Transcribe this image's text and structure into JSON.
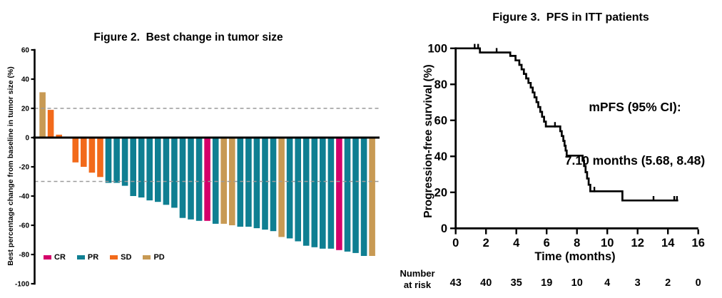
{
  "chart_data": [
    {
      "type": "bar",
      "title": "Figure 2.  Best change in tumor size",
      "ylabel": "Best percentage change from baseline in tumor size (%)",
      "ylim": [
        -100,
        60
      ],
      "yticks": [
        60,
        40,
        20,
        0,
        -20,
        -40,
        -60,
        -80,
        -100
      ],
      "ref_lines": [
        20,
        -30
      ],
      "grid": "off",
      "legend_position": "bottom-left",
      "colors": {
        "CR": "#D4006A",
        "PR": "#0F7F92",
        "SD": "#F26A1B",
        "PD": "#C89A54"
      },
      "legend": [
        {
          "label": "CR",
          "color": "#D4006A"
        },
        {
          "label": "PR",
          "color": "#0F7F92"
        },
        {
          "label": "SD",
          "color": "#F26A1B"
        },
        {
          "label": "PD",
          "color": "#C89A54"
        }
      ],
      "bars": [
        {
          "value": 31,
          "response": "PD"
        },
        {
          "value": 19,
          "response": "SD"
        },
        {
          "value": 2,
          "response": "SD"
        },
        {
          "value": 0,
          "response": "SD"
        },
        {
          "value": -17,
          "response": "SD"
        },
        {
          "value": -20,
          "response": "SD"
        },
        {
          "value": -24,
          "response": "SD"
        },
        {
          "value": -27,
          "response": "SD"
        },
        {
          "value": -31,
          "response": "PR"
        },
        {
          "value": -31,
          "response": "PR"
        },
        {
          "value": -33,
          "response": "PR"
        },
        {
          "value": -40,
          "response": "PR"
        },
        {
          "value": -41,
          "response": "PR"
        },
        {
          "value": -43,
          "response": "PR"
        },
        {
          "value": -44,
          "response": "PR"
        },
        {
          "value": -46,
          "response": "PR"
        },
        {
          "value": -48,
          "response": "PR"
        },
        {
          "value": -55,
          "response": "PR"
        },
        {
          "value": -56,
          "response": "PR"
        },
        {
          "value": -57,
          "response": "PR"
        },
        {
          "value": -57,
          "response": "CR"
        },
        {
          "value": -59,
          "response": "PR"
        },
        {
          "value": -59,
          "response": "PD"
        },
        {
          "value": -60,
          "response": "PD"
        },
        {
          "value": -61,
          "response": "PR"
        },
        {
          "value": -61,
          "response": "PR"
        },
        {
          "value": -62,
          "response": "PR"
        },
        {
          "value": -63,
          "response": "PR"
        },
        {
          "value": -64,
          "response": "PR"
        },
        {
          "value": -68,
          "response": "PD"
        },
        {
          "value": -69,
          "response": "PR"
        },
        {
          "value": -71,
          "response": "PR"
        },
        {
          "value": -74,
          "response": "PR"
        },
        {
          "value": -75,
          "response": "PR"
        },
        {
          "value": -76,
          "response": "PR"
        },
        {
          "value": -76,
          "response": "PR"
        },
        {
          "value": -77,
          "response": "CR"
        },
        {
          "value": -78,
          "response": "PR"
        },
        {
          "value": -79,
          "response": "PR"
        },
        {
          "value": -81,
          "response": "PR"
        },
        {
          "value": -81,
          "response": "PD"
        }
      ]
    },
    {
      "type": "line",
      "subtype": "kaplan-meier-step",
      "title": "Figure 3.  PFS in ITT patients",
      "ylabel": "Progression-free survival (%)",
      "xlabel": "Time (months)",
      "xlim": [
        0,
        16
      ],
      "ylim": [
        0,
        100
      ],
      "xticks": [
        0,
        2,
        4,
        6,
        8,
        10,
        12,
        14,
        16
      ],
      "yticks": [
        100,
        80,
        60,
        40,
        20,
        0
      ],
      "grid": "off",
      "annotation": {
        "line1": "mPFS (95% CI):",
        "line2": "7.10 months (5.68, 8.48)"
      },
      "steps": [
        [
          0,
          100
        ],
        [
          1.6,
          100
        ],
        [
          1.6,
          97.7
        ],
        [
          3.6,
          97.7
        ],
        [
          3.6,
          95.8
        ],
        [
          3.95,
          95.8
        ],
        [
          3.95,
          93.3
        ],
        [
          4.2,
          93.3
        ],
        [
          4.2,
          90.8
        ],
        [
          4.35,
          90.8
        ],
        [
          4.35,
          88.3
        ],
        [
          4.5,
          88.3
        ],
        [
          4.5,
          85.8
        ],
        [
          4.65,
          85.8
        ],
        [
          4.65,
          83.3
        ],
        [
          4.8,
          83.3
        ],
        [
          4.8,
          80.8
        ],
        [
          4.95,
          80.8
        ],
        [
          4.95,
          78.2
        ],
        [
          5.08,
          78.2
        ],
        [
          5.08,
          75.5
        ],
        [
          5.2,
          75.5
        ],
        [
          5.2,
          72.8
        ],
        [
          5.33,
          72.8
        ],
        [
          5.33,
          70.1
        ],
        [
          5.45,
          70.1
        ],
        [
          5.45,
          67.4
        ],
        [
          5.58,
          67.4
        ],
        [
          5.58,
          64.7
        ],
        [
          5.7,
          64.7
        ],
        [
          5.7,
          62
        ],
        [
          5.83,
          62
        ],
        [
          5.83,
          59.3
        ],
        [
          5.95,
          59.3
        ],
        [
          5.95,
          56.6
        ],
        [
          6.9,
          56.6
        ],
        [
          6.9,
          54
        ],
        [
          7.0,
          54
        ],
        [
          7.0,
          51.3
        ],
        [
          7.1,
          51.3
        ],
        [
          7.1,
          48.6
        ],
        [
          7.18,
          48.6
        ],
        [
          7.18,
          45.9
        ],
        [
          7.25,
          45.9
        ],
        [
          7.25,
          43.2
        ],
        [
          7.32,
          43.2
        ],
        [
          7.32,
          40.4
        ],
        [
          8.37,
          40.4
        ],
        [
          8.37,
          37.6
        ],
        [
          8.47,
          37.6
        ],
        [
          8.47,
          34.6
        ],
        [
          8.57,
          34.6
        ],
        [
          8.57,
          31.2
        ],
        [
          8.67,
          31.2
        ],
        [
          8.67,
          27.7
        ],
        [
          8.77,
          27.7
        ],
        [
          8.77,
          24.2
        ],
        [
          8.88,
          24.2
        ],
        [
          8.88,
          20.6
        ],
        [
          11.0,
          20.6
        ],
        [
          11.0,
          15.5
        ],
        [
          14.68,
          15.5
        ]
      ],
      "censor_marks": [
        [
          1.25,
          100
        ],
        [
          1.48,
          100
        ],
        [
          2.7,
          97.7
        ],
        [
          6.55,
          56.6
        ],
        [
          9.15,
          20.6
        ],
        [
          13.05,
          15.5
        ],
        [
          14.42,
          15.5
        ],
        [
          14.6,
          15.5
        ]
      ],
      "risk_table": {
        "label_line1": "Number",
        "label_line2": "at risk",
        "times": [
          0,
          2,
          4,
          6,
          8,
          10,
          12,
          14,
          16
        ],
        "values": [
          43,
          40,
          35,
          19,
          10,
          4,
          3,
          2,
          0
        ]
      }
    }
  ]
}
